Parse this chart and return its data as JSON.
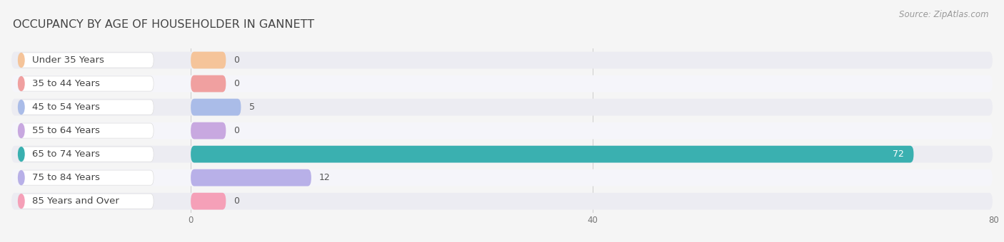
{
  "title": "OCCUPANCY BY AGE OF HOUSEHOLDER IN GANNETT",
  "source": "Source: ZipAtlas.com",
  "categories": [
    "Under 35 Years",
    "35 to 44 Years",
    "45 to 54 Years",
    "55 to 64 Years",
    "65 to 74 Years",
    "75 to 84 Years",
    "85 Years and Over"
  ],
  "values": [
    0,
    0,
    5,
    0,
    72,
    12,
    0
  ],
  "bar_colors": [
    "#f5c49a",
    "#f0a0a0",
    "#aabce8",
    "#c8a8e0",
    "#3ab0b0",
    "#b8b0e8",
    "#f5a0b8"
  ],
  "xlim_data": [
    0,
    80
  ],
  "xticks": [
    0,
    40,
    80
  ],
  "background_color": "#f5f5f5",
  "row_bg_even": "#ececf2",
  "row_bg_odd": "#f5f5fa",
  "title_color": "#444444",
  "title_fontsize": 11.5,
  "label_fontsize": 9.5,
  "value_fontsize": 9,
  "source_fontsize": 8.5
}
